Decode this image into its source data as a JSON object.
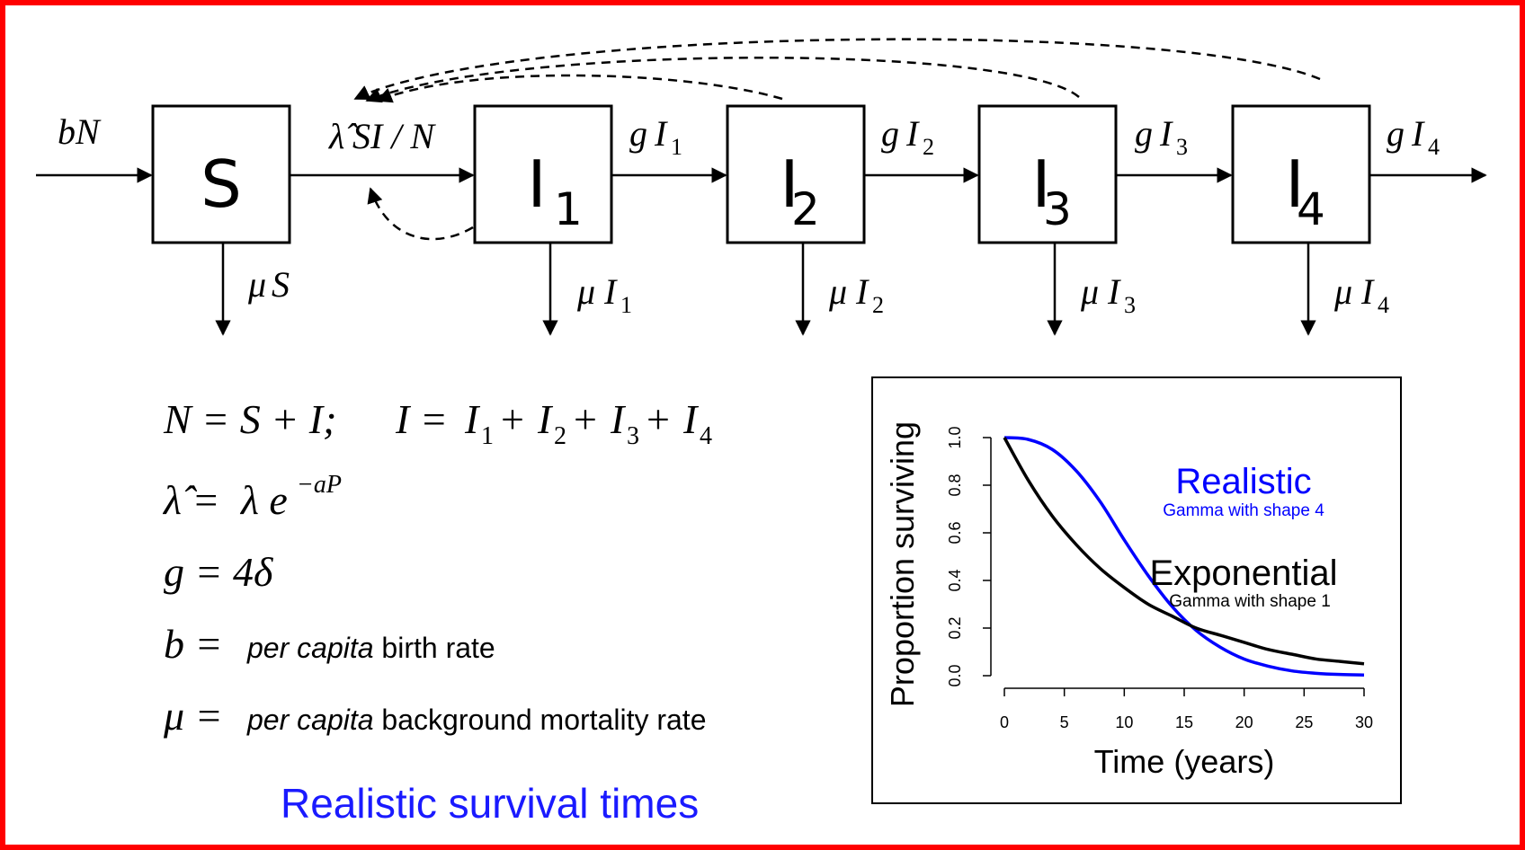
{
  "colors": {
    "border": "#ff0000",
    "realistic": "#0000ff",
    "exponential": "#000000",
    "caption": "#1a1aff"
  },
  "boxes": {
    "s": "S",
    "i1": "I",
    "i1_sub": "1",
    "i2": "I",
    "i2_sub": "2",
    "i3": "I",
    "i3_sub": "3",
    "i4": "I",
    "i4_sub": "4"
  },
  "flows": {
    "birth": "bN",
    "infection_lambda_hat": "λ̂",
    "infection_rest": "SI / N",
    "g_symbol": "g",
    "progression": [
      {
        "base": "I",
        "sub": "1"
      },
      {
        "base": "I",
        "sub": "2"
      },
      {
        "base": "I",
        "sub": "3"
      },
      {
        "base": "I",
        "sub": "4"
      }
    ],
    "mu_symbol": "μ",
    "mortality_s": "S",
    "mortality": [
      {
        "base": "I",
        "sub": "1"
      },
      {
        "base": "I",
        "sub": "2"
      },
      {
        "base": "I",
        "sub": "3"
      },
      {
        "base": "I",
        "sub": "4"
      }
    ]
  },
  "equations": {
    "eq1_left": "N = S + I;",
    "eq1_right_I": "I = ",
    "eq1_terms": [
      {
        "base": "I",
        "sub": "1",
        "op": "+"
      },
      {
        "base": "I",
        "sub": "2",
        "op": "+"
      },
      {
        "base": "I",
        "sub": "3",
        "op": "+"
      },
      {
        "base": "I",
        "sub": "4",
        "op": ""
      }
    ],
    "eq2_lhs": "λ̂ =",
    "eq2_rhs": "λ e",
    "eq2_exp": "−aP",
    "eq3": "g = 4δ",
    "eq4_lhs": "b =",
    "eq4_italic": "per capita",
    "eq4_text": " birth rate",
    "eq5_lhs": "μ =",
    "eq5_italic": "per capita",
    "eq5_text": " background mortality rate"
  },
  "caption": "Realistic survival times",
  "chart_data": {
    "type": "line",
    "xlabel": "Time (years)",
    "ylabel": "Proportion surviving",
    "xlim": [
      0,
      30
    ],
    "ylim": [
      0,
      1
    ],
    "xticks": [
      "0",
      "5",
      "10",
      "15",
      "20",
      "25",
      "30"
    ],
    "yticks": [
      "0.0",
      "0.2",
      "0.4",
      "0.6",
      "0.8",
      "1.0"
    ],
    "series": [
      {
        "name": "Realistic",
        "subtitle": "Gamma with shape 4",
        "color": "#0000ff",
        "x": [
          0,
          2,
          4,
          6,
          8,
          10,
          12,
          14,
          16,
          18,
          20,
          22,
          24,
          26,
          28,
          30
        ],
        "y": [
          1.0,
          0.992,
          0.95,
          0.86,
          0.73,
          0.57,
          0.42,
          0.29,
          0.19,
          0.12,
          0.07,
          0.04,
          0.02,
          0.01,
          0.005,
          0.003
        ]
      },
      {
        "name": "Exponential",
        "subtitle": "Gamma with shape 1",
        "color": "#000000",
        "x": [
          0,
          2,
          4,
          6,
          8,
          10,
          12,
          14,
          16,
          18,
          20,
          22,
          24,
          26,
          28,
          30
        ],
        "y": [
          1.0,
          0.82,
          0.67,
          0.55,
          0.45,
          0.37,
          0.3,
          0.25,
          0.2,
          0.17,
          0.14,
          0.11,
          0.09,
          0.07,
          0.06,
          0.05
        ]
      }
    ]
  }
}
